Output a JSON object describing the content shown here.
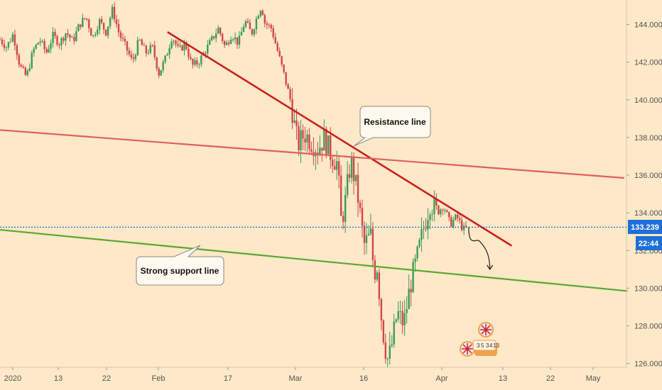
{
  "chart_data": {
    "type": "candlestick",
    "y_ticks": [
      "144.000",
      "142.000",
      "140.000",
      "138.000",
      "136.000",
      "134.000",
      "132.000",
      "130.000",
      "128.000",
      "126.000"
    ],
    "y_values": [
      144,
      142,
      140,
      138,
      136,
      134,
      132,
      130,
      128,
      126
    ],
    "x_ticks": [
      "2020",
      "13",
      "22",
      "Feb",
      "17",
      "Mar",
      "16",
      "Apr",
      "13",
      "22",
      "May"
    ],
    "ylim": [
      125.8,
      145.3
    ],
    "current_price": "133.239",
    "current_value": 133.239,
    "countdown": "22:44",
    "annotations": {
      "resistance": "Resistance line",
      "support": "Strong support line"
    },
    "event_numbers": [
      "3",
      "5",
      "3",
      "4",
      "13"
    ],
    "lines": [
      {
        "name": "resistance",
        "color": "#cc1f1f",
        "from": [
          0.253,
          143.6
        ],
        "to": [
          0.773,
          132.25
        ]
      },
      {
        "name": "upper",
        "color": "#e0605c",
        "from": [
          0.0,
          138.4
        ],
        "to": [
          0.943,
          135.85
        ]
      },
      {
        "name": "support",
        "color": "#5aa832",
        "from": [
          0.0,
          133.1
        ],
        "to": [
          0.948,
          129.85
        ]
      }
    ],
    "price_path": [
      [
        0,
        143.2
      ],
      [
        0.01,
        142.8
      ],
      [
        0.02,
        143.5
      ],
      [
        0.03,
        141.8
      ],
      [
        0.04,
        141.2
      ],
      [
        0.05,
        142.6
      ],
      [
        0.06,
        143.2
      ],
      [
        0.07,
        142.5
      ],
      [
        0.08,
        143.4
      ],
      [
        0.09,
        143.0
      ],
      [
        0.1,
        143.6
      ],
      [
        0.11,
        143.1
      ],
      [
        0.12,
        144.0
      ],
      [
        0.13,
        144.4
      ],
      [
        0.14,
        143.3
      ],
      [
        0.15,
        144.2
      ],
      [
        0.16,
        143.6
      ],
      [
        0.17,
        144.8
      ],
      [
        0.18,
        143.5
      ],
      [
        0.19,
        142.8
      ],
      [
        0.2,
        142.0
      ],
      [
        0.21,
        143.2
      ],
      [
        0.22,
        142.5
      ],
      [
        0.23,
        142.8
      ],
      [
        0.24,
        141.4
      ],
      [
        0.25,
        142.2
      ],
      [
        0.26,
        143.4
      ],
      [
        0.27,
        142.6
      ],
      [
        0.28,
        143.0
      ],
      [
        0.29,
        141.8
      ],
      [
        0.3,
        142.0
      ],
      [
        0.31,
        142.6
      ],
      [
        0.32,
        143.2
      ],
      [
        0.33,
        143.8
      ],
      [
        0.34,
        142.8
      ],
      [
        0.35,
        143.5
      ],
      [
        0.36,
        143.0
      ],
      [
        0.37,
        144.2
      ],
      [
        0.38,
        143.5
      ],
      [
        0.39,
        144.6
      ],
      [
        0.395,
        145.0
      ],
      [
        0.4,
        144.1
      ],
      [
        0.41,
        143.8
      ],
      [
        0.42,
        142.5
      ],
      [
        0.43,
        141.2
      ],
      [
        0.44,
        139.8
      ],
      [
        0.445,
        138.6
      ],
      [
        0.45,
        137.6
      ],
      [
        0.46,
        138.2
      ],
      [
        0.47,
        137.8
      ],
      [
        0.48,
        137.4
      ],
      [
        0.49,
        138.0
      ],
      [
        0.5,
        137.1
      ],
      [
        0.51,
        136.6
      ],
      [
        0.515,
        133.6
      ],
      [
        0.52,
        134.2
      ],
      [
        0.53,
        136.8
      ],
      [
        0.54,
        135.0
      ],
      [
        0.55,
        132.3
      ],
      [
        0.56,
        132.8
      ],
      [
        0.565,
        130.8
      ],
      [
        0.57,
        131.2
      ],
      [
        0.575,
        128.8
      ],
      [
        0.58,
        127.3
      ],
      [
        0.585,
        126.2
      ],
      [
        0.59,
        126.6
      ],
      [
        0.6,
        128.7
      ],
      [
        0.61,
        128.1
      ],
      [
        0.62,
        130.2
      ],
      [
        0.63,
        131.6
      ],
      [
        0.64,
        133.2
      ],
      [
        0.65,
        134.6
      ],
      [
        0.66,
        134.0
      ],
      [
        0.67,
        134.4
      ],
      [
        0.68,
        133.4
      ],
      [
        0.69,
        133.8
      ],
      [
        0.7,
        133.1
      ],
      [
        0.707,
        133.24
      ]
    ],
    "projection_path": [
      [
        0.708,
        133.24
      ],
      [
        0.72,
        132.5
      ],
      [
        0.735,
        132.0
      ],
      [
        0.74,
        131.0
      ]
    ]
  }
}
